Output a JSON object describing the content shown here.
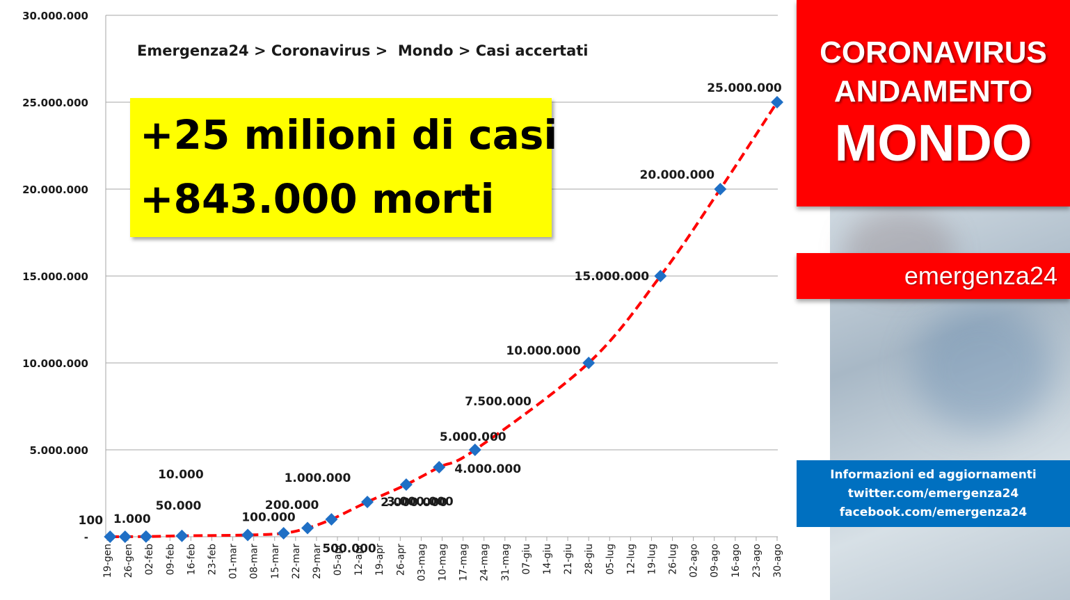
{
  "chart_data": {
    "type": "line",
    "title": "Emergenza24 > Coronavirus >  Mondo > Casi accertati",
    "xlabel": "",
    "ylabel": "",
    "ylim": [
      0,
      30000000
    ],
    "y_ticks": [
      {
        "value": 0,
        "label": "-"
      },
      {
        "value": 5000000,
        "label": "5.000.000"
      },
      {
        "value": 10000000,
        "label": "10.000.000"
      },
      {
        "value": 15000000,
        "label": "15.000.000"
      },
      {
        "value": 20000000,
        "label": "20.000.000"
      },
      {
        "value": 25000000,
        "label": "25.000.000"
      },
      {
        "value": 30000000,
        "label": "30.000.000"
      }
    ],
    "grid": true,
    "legend": "none",
    "line_color": "#ff0000",
    "marker_color": "#1f6fc5",
    "x_ticks": [
      "19-gen",
      "26-gen",
      "02-feb",
      "09-feb",
      "16-feb",
      "23-feb",
      "01-mar",
      "08-mar",
      "15-mar",
      "22-mar",
      "29-mar",
      "05-apr",
      "12-apr",
      "19-apr",
      "26-apr",
      "03-mag",
      "10-mag",
      "17-mag",
      "24-mag",
      "31-mag",
      "07-giu",
      "14-giu",
      "21-giu",
      "28-giu",
      "05-lug",
      "12-lug",
      "19-lug",
      "26-lug",
      "02-ago",
      "09-ago",
      "16-ago",
      "23-ago",
      "30-ago"
    ],
    "x_tick_start": "2020-01-19",
    "series": [
      {
        "points": [
          {
            "x": "2020-01-20",
            "y": 100,
            "label": "100"
          },
          {
            "x": "2020-01-25",
            "y": 1000,
            "label": "1.000"
          },
          {
            "x": "2020-02-01",
            "y": 10000,
            "label": "10.000"
          },
          {
            "x": "2020-02-13",
            "y": 50000,
            "label": "50.000"
          },
          {
            "x": "2020-03-06",
            "y": 100000,
            "label": "100.000"
          },
          {
            "x": "2020-03-18",
            "y": 200000,
            "label": "200.000"
          },
          {
            "x": "2020-03-26",
            "y": 500000,
            "label": "500.000"
          },
          {
            "x": "2020-04-03",
            "y": 1000000,
            "label": "1.000.000"
          },
          {
            "x": "2020-04-15",
            "y": 2000000,
            "label": "2.000.000"
          },
          {
            "x": "2020-04-28",
            "y": 3000000,
            "label": "3.000.000"
          },
          {
            "x": "2020-05-09",
            "y": 4000000,
            "label": "4.000.000"
          },
          {
            "x": "2020-05-21",
            "y": 5000000,
            "label": "5.000.000"
          },
          {
            "x": "2020-06-28",
            "y": 10000000,
            "label": "10.000.000"
          },
          {
            "x": "2020-07-22",
            "y": 15000000,
            "label": "15.000.000"
          },
          {
            "x": "2020-08-11",
            "y": 20000000,
            "label": "20.000.000"
          },
          {
            "x": "2020-08-30",
            "y": 25000000,
            "label": "25.000.000"
          }
        ]
      }
    ],
    "extra_label": "7.500.000"
  },
  "callout": {
    "line1": "+25 milioni di casi",
    "line2": "+843.000 morti"
  },
  "banner": {
    "line1": "CORONAVIRUS",
    "line2": "ANDAMENTO",
    "line3": "MONDO",
    "brand": "emergenza24"
  },
  "info": {
    "line1": "Informazioni ed aggiornamenti",
    "line2": "twitter.com/emergenza24",
    "line3": "facebook.com/emergenza24"
  },
  "colors": {
    "banner_red": "#ff0000",
    "info_blue": "#0070c0",
    "callout_yellow": "#ffff00"
  }
}
